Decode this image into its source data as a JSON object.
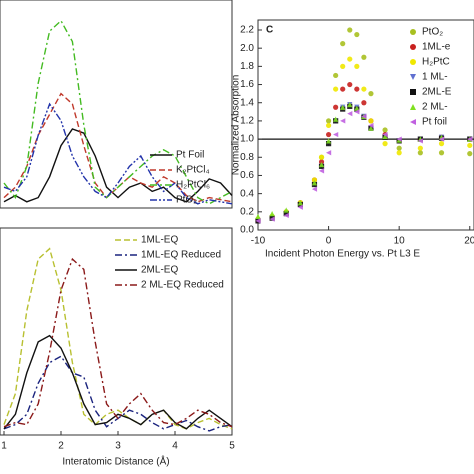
{
  "chart_data": [
    {
      "type": "line",
      "xlim": [
        0.93,
        5
      ],
      "ylim": [
        0,
        1
      ],
      "legend": "lower right",
      "x": [
        1.0,
        1.2,
        1.4,
        1.6,
        1.8,
        2.0,
        2.2,
        2.4,
        2.6,
        2.8,
        3.0,
        3.2,
        3.4,
        3.6,
        3.8,
        4.0,
        4.2,
        4.4,
        4.6,
        4.8,
        5.0
      ],
      "series": [
        {
          "name": "Pt Foil",
          "color": "#111111",
          "dash": "solid",
          "values": [
            0.03,
            0.06,
            0.03,
            0.05,
            0.15,
            0.3,
            0.38,
            0.36,
            0.25,
            0.1,
            0.05,
            0.1,
            0.12,
            0.08,
            0.1,
            0.05,
            0.03,
            0.08,
            0.14,
            0.12,
            0.06
          ]
        },
        {
          "name": "K₂PtCl₄",
          "color": "#c0392b",
          "dash": "dashed",
          "values": [
            0.05,
            0.1,
            0.2,
            0.35,
            0.45,
            0.55,
            0.5,
            0.3,
            0.12,
            0.05,
            0.1,
            0.15,
            0.12,
            0.1,
            0.15,
            0.12,
            0.06,
            0.03,
            0.05,
            0.04,
            0.03
          ]
        },
        {
          "name": "H₂PtCl₆",
          "color": "#44bb22",
          "dash": "dashdot",
          "values": [
            0.12,
            0.05,
            0.2,
            0.6,
            0.85,
            0.9,
            0.8,
            0.4,
            0.1,
            0.05,
            0.1,
            0.15,
            0.2,
            0.25,
            0.28,
            0.25,
            0.15,
            0.05,
            0.02,
            0.05,
            0.08
          ]
        },
        {
          "name": "PtO₂",
          "color": "#2233aa",
          "dash": "dashdotdot",
          "values": [
            0.1,
            0.08,
            0.15,
            0.35,
            0.5,
            0.42,
            0.25,
            0.15,
            0.08,
            0.05,
            0.12,
            0.2,
            0.25,
            0.15,
            0.08,
            0.12,
            0.05,
            0.02,
            0.04,
            0.03,
            0.02
          ]
        }
      ]
    },
    {
      "type": "line",
      "xlim": [
        0.93,
        5
      ],
      "ylim": [
        0,
        1
      ],
      "xticks": [
        1,
        2,
        3,
        4,
        5
      ],
      "x_label": "Interatomic Distance (Å)",
      "legend": "upper right",
      "x": [
        1.0,
        1.2,
        1.4,
        1.6,
        1.8,
        2.0,
        2.2,
        2.4,
        2.6,
        2.8,
        3.0,
        3.2,
        3.4,
        3.6,
        3.8,
        4.0,
        4.2,
        4.4,
        4.6,
        4.8,
        5.0
      ],
      "series": [
        {
          "name": "1ML-EQ",
          "color": "#b8c030",
          "dash": "dashed",
          "values": [
            0.05,
            0.2,
            0.6,
            0.85,
            0.9,
            0.7,
            0.35,
            0.1,
            0.05,
            0.1,
            0.12,
            0.08,
            0.05,
            0.1,
            0.12,
            0.05,
            0.03,
            0.06,
            0.08,
            0.05,
            0.03
          ]
        },
        {
          "name": "1ML-EQ Reduced",
          "color": "#1a237e",
          "dash": "dashdot",
          "values": [
            0.03,
            0.05,
            0.1,
            0.25,
            0.35,
            0.38,
            0.3,
            0.28,
            0.12,
            0.04,
            0.08,
            0.12,
            0.1,
            0.06,
            0.03,
            0.05,
            0.07,
            0.04,
            0.02,
            0.04,
            0.05
          ]
        },
        {
          "name": "2ML-EQ",
          "color": "#111111",
          "dash": "solid",
          "values": [
            0.03,
            0.1,
            0.3,
            0.45,
            0.48,
            0.42,
            0.3,
            0.15,
            0.05,
            0.06,
            0.1,
            0.08,
            0.05,
            0.1,
            0.12,
            0.06,
            0.03,
            0.08,
            0.12,
            0.08,
            0.04
          ]
        },
        {
          "name": "2 ML-EQ Reduced",
          "color": "#8b1a1a",
          "dash": "dashdot",
          "values": [
            0.04,
            0.06,
            0.05,
            0.15,
            0.4,
            0.7,
            0.85,
            0.8,
            0.45,
            0.15,
            0.08,
            0.15,
            0.2,
            0.12,
            0.06,
            0.05,
            0.08,
            0.12,
            0.1,
            0.06,
            0.04
          ]
        }
      ]
    },
    {
      "type": "scatter",
      "panel_label": "C",
      "xlim": [
        -10,
        20.6
      ],
      "ylim": [
        0,
        2.31
      ],
      "hline": 1,
      "xticks": [
        -10,
        0,
        10,
        20
      ],
      "yticks": [
        {
          "value": 0,
          "label": "0.0"
        },
        0.2,
        0.4,
        0.6,
        0.8,
        {
          "value": 1,
          "label": "1.0"
        },
        1.2,
        1.4,
        1.6,
        1.8,
        {
          "value": 2,
          "label": "2.0"
        },
        2.2
      ],
      "x_label": "Incident Photon Energy vs. Pt L3 E",
      "y_label": "Normalized Absorption",
      "legend": "upper right",
      "x": [
        -10,
        -8,
        -6,
        -4,
        -2,
        -1,
        0,
        1,
        2,
        3,
        4,
        5,
        6,
        8,
        10,
        13,
        16,
        20
      ],
      "series": [
        {
          "name": "PtO₂",
          "color": "#a8c020",
          "marker": "circle",
          "values": [
            0.12,
            0.15,
            0.2,
            0.3,
            0.55,
            0.8,
            1.2,
            1.7,
            2.05,
            2.2,
            2.15,
            1.9,
            1.5,
            1.1,
            0.9,
            0.85,
            0.85,
            0.84
          ]
        },
        {
          "name": "1ML-e",
          "color": "#c8201e",
          "marker": "circle",
          "values": [
            0.1,
            0.14,
            0.2,
            0.3,
            0.55,
            0.75,
            1.05,
            1.35,
            1.55,
            1.6,
            1.55,
            1.4,
            1.2,
            1.05,
            0.98,
            1.0,
            1.02,
            1.0
          ]
        },
        {
          "name": "H₂PtC",
          "color": "#f0e800",
          "marker": "circle",
          "values": [
            0.12,
            0.15,
            0.2,
            0.3,
            0.55,
            0.8,
            1.15,
            1.55,
            1.8,
            1.88,
            1.8,
            1.55,
            1.2,
            0.95,
            0.85,
            0.9,
            0.95,
            0.93
          ]
        },
        {
          "name": "1 ML-",
          "color": "#6070d0",
          "marker": "triangle-down",
          "values": [
            0.1,
            0.13,
            0.18,
            0.28,
            0.5,
            0.7,
            0.95,
            1.2,
            1.35,
            1.38,
            1.35,
            1.25,
            1.12,
            1.02,
            0.98,
            1.0,
            1.02,
            1.0
          ]
        },
        {
          "name": "2ML-E",
          "color": "#111111",
          "marker": "square",
          "values": [
            0.1,
            0.13,
            0.18,
            0.28,
            0.5,
            0.7,
            0.95,
            1.2,
            1.33,
            1.36,
            1.33,
            1.24,
            1.12,
            1.02,
            0.98,
            1.0,
            1.01,
            1.0
          ]
        },
        {
          "name": "2 ML-",
          "color": "#80e020",
          "marker": "triangle-up",
          "values": [
            0.15,
            0.18,
            0.22,
            0.3,
            0.52,
            0.72,
            0.98,
            1.22,
            1.35,
            1.38,
            1.34,
            1.25,
            1.12,
            1.03,
            0.99,
            1.0,
            1.02,
            1.0
          ]
        },
        {
          "name": "Pt foil",
          "color": "#c060e0",
          "marker": "triangle-left",
          "values": [
            0.1,
            0.12,
            0.16,
            0.25,
            0.45,
            0.65,
            0.85,
            1.05,
            1.2,
            1.28,
            1.3,
            1.25,
            1.15,
            1.05,
            1.0,
            0.98,
            1.0,
            1.0
          ]
        }
      ]
    }
  ]
}
